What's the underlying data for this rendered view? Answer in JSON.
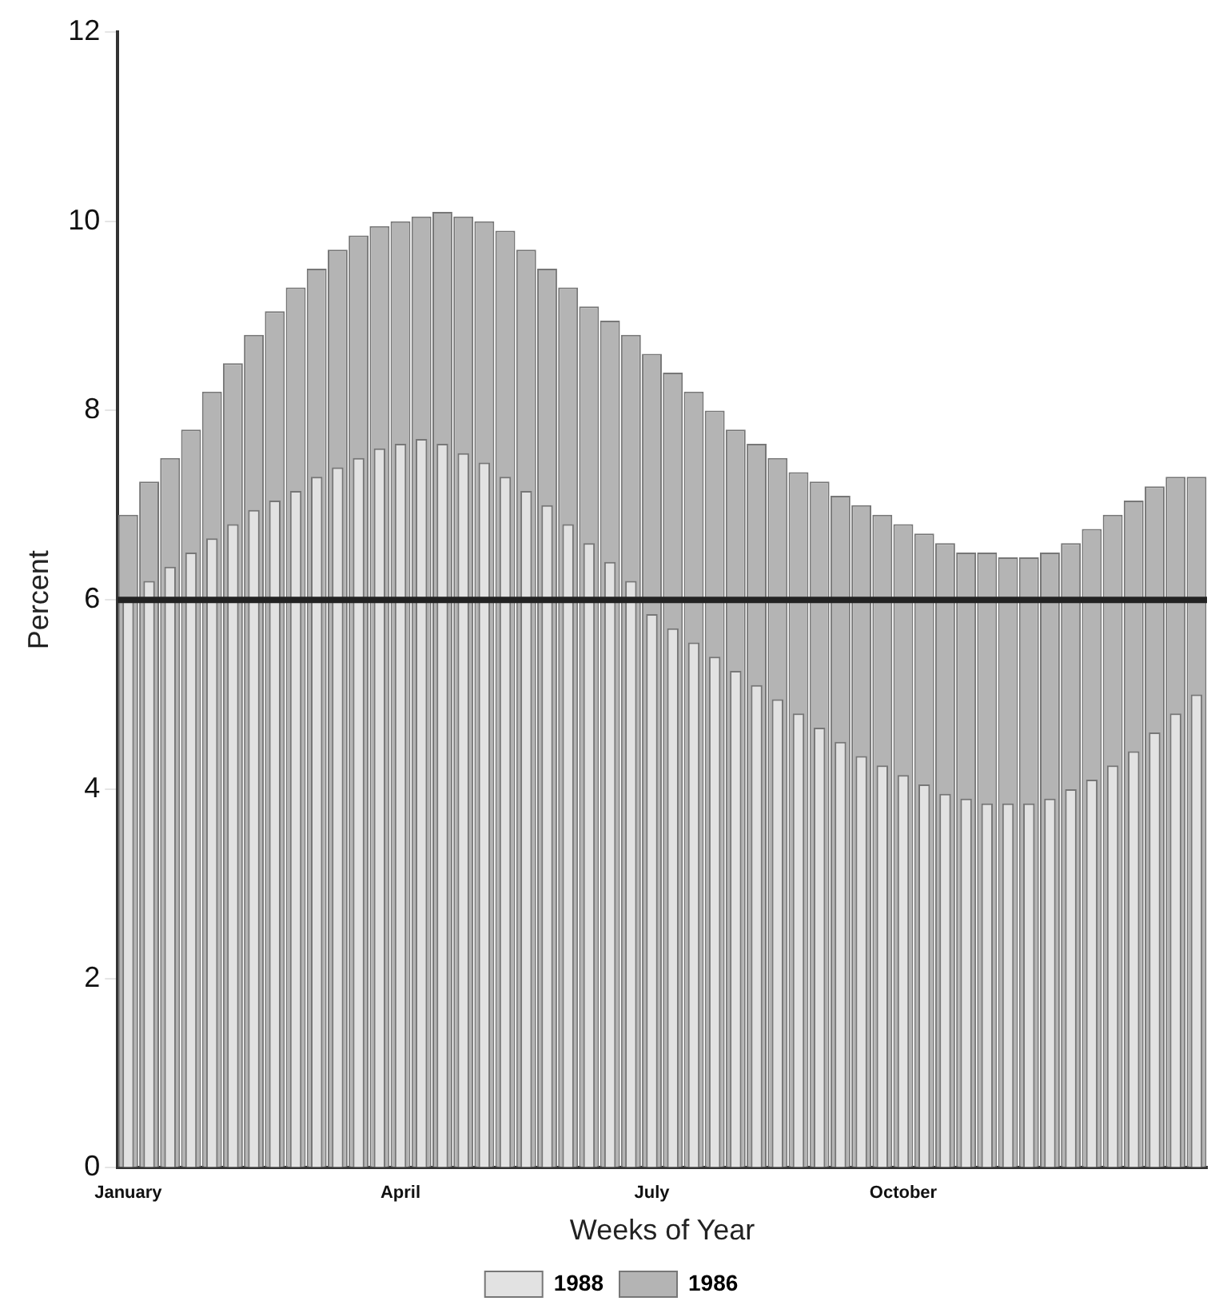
{
  "chart_data": {
    "type": "bar",
    "xlabel": "Weeks of Year",
    "ylabel": "Percent",
    "categories": [
      "January",
      null,
      null,
      null,
      null,
      null,
      null,
      null,
      null,
      null,
      null,
      null,
      null,
      "April",
      null,
      null,
      null,
      null,
      null,
      null,
      null,
      null,
      null,
      null,
      null,
      "July",
      null,
      null,
      null,
      null,
      null,
      null,
      null,
      null,
      null,
      null,
      null,
      "October",
      null,
      null,
      null,
      null,
      null,
      null,
      null,
      null,
      null,
      null,
      null,
      null,
      null,
      null
    ],
    "series": [
      {
        "name": "1988",
        "color": "#e2e2e2",
        "values": [
          6.0,
          6.2,
          6.35,
          6.5,
          6.65,
          6.8,
          6.95,
          7.05,
          7.15,
          7.3,
          7.4,
          7.5,
          7.6,
          7.65,
          7.7,
          7.65,
          7.55,
          7.45,
          7.3,
          7.15,
          7.0,
          6.8,
          6.6,
          6.4,
          6.2,
          5.85,
          5.7,
          5.55,
          5.4,
          5.25,
          5.1,
          4.95,
          4.8,
          4.65,
          4.5,
          4.35,
          4.25,
          4.15,
          4.05,
          3.95,
          3.9,
          3.85,
          3.85,
          3.85,
          3.9,
          4.0,
          4.1,
          4.25,
          4.4,
          4.6,
          4.8,
          5.0
        ]
      },
      {
        "name": "1986",
        "color": "#b4b4b4",
        "values": [
          6.9,
          7.25,
          7.5,
          7.8,
          8.2,
          8.5,
          8.8,
          9.05,
          9.3,
          9.5,
          9.7,
          9.85,
          9.95,
          10.0,
          10.05,
          10.1,
          10.05,
          10.0,
          9.9,
          9.7,
          9.5,
          9.3,
          9.1,
          8.95,
          8.8,
          8.6,
          8.4,
          8.2,
          8.0,
          7.8,
          7.65,
          7.5,
          7.35,
          7.25,
          7.1,
          7.0,
          6.9,
          6.8,
          6.7,
          6.6,
          6.5,
          6.5,
          6.45,
          6.45,
          6.5,
          6.6,
          6.75,
          6.9,
          7.05,
          7.2,
          7.3,
          7.3
        ]
      }
    ],
    "ylim": [
      0,
      12
    ],
    "yticks": [
      0,
      2,
      4,
      6,
      8,
      10,
      12
    ],
    "ref_lines": [
      {
        "axis": "y",
        "value": 6,
        "color": "#222222"
      }
    ],
    "legend": "bottom",
    "grid": false
  }
}
